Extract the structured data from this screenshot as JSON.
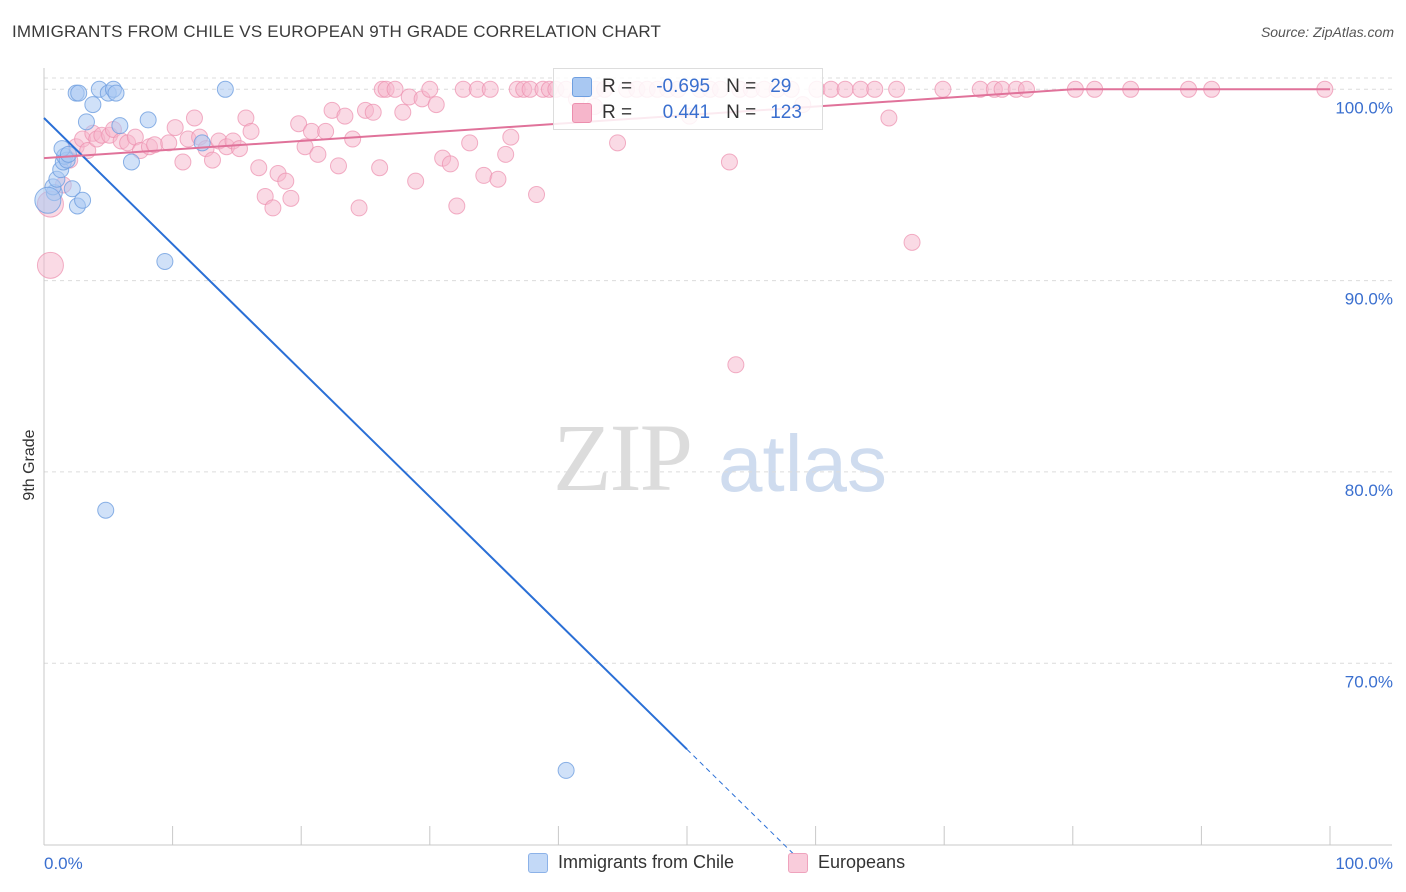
{
  "title": "IMMIGRANTS FROM CHILE VS EUROPEAN 9TH GRADE CORRELATION CHART",
  "source": "Source: ZipAtlas.com",
  "watermark": {
    "zip": "ZIP",
    "atlas": "atlas"
  },
  "legend_top": {
    "rows": [
      {
        "r_label": "R =",
        "r_value": "-0.695",
        "n_label": "N =",
        "n_value": "29"
      },
      {
        "r_label": "R =",
        "r_value": "0.441",
        "n_label": "N =",
        "n_value": "123"
      }
    ]
  },
  "legend_bottom": {
    "series_a": "Immigrants from Chile",
    "series_b": "Europeans"
  },
  "colors": {
    "chile_fill": "#a9c8f2",
    "chile_stroke": "#6f9fe0",
    "chile_line": "#2a6fd6",
    "euro_fill": "#f6b6cb",
    "euro_stroke": "#ec8fae",
    "euro_line": "#e0729a",
    "tick": "#3a6fcf",
    "grid": "#dcdcdc"
  },
  "chart_data": {
    "type": "scatter",
    "title": "IMMIGRANTS FROM CHILE VS EUROPEAN 9TH GRADE CORRELATION CHART",
    "xlabel": "",
    "ylabel": "9th Grade",
    "xlim": [
      0,
      100
    ],
    "ylim": [
      60.5,
      100.8
    ],
    "x_tick_labels": [
      "0.0%",
      "100.0%"
    ],
    "y_ticks": [
      {
        "value": 100,
        "label": "100.0%"
      },
      {
        "value": 90,
        "label": "90.0%"
      },
      {
        "value": 80,
        "label": "80.0%"
      },
      {
        "value": 70,
        "label": "70.0%"
      }
    ],
    "grid": true,
    "series": [
      {
        "name": "Immigrants from Chile",
        "r": -0.695,
        "n": 29,
        "trend": {
          "x0": 0,
          "y0": 98.5,
          "x1": 50,
          "y1": 65.5,
          "dash_to_x": 58.3
        },
        "points": [
          [
            0.8,
            94.6
          ],
          [
            0.7,
            94.9
          ],
          [
            1.0,
            95.3
          ],
          [
            1.3,
            95.8
          ],
          [
            1.5,
            96.2
          ],
          [
            1.6,
            96.5
          ],
          [
            1.8,
            96.3
          ],
          [
            1.4,
            96.9
          ],
          [
            1.9,
            96.6
          ],
          [
            2.2,
            94.8
          ],
          [
            2.6,
            93.9
          ],
          [
            3.0,
            94.2
          ],
          [
            2.5,
            99.8
          ],
          [
            2.7,
            99.8
          ],
          [
            3.3,
            98.3
          ],
          [
            3.8,
            99.2
          ],
          [
            4.3,
            100.0
          ],
          [
            5.0,
            99.8
          ],
          [
            5.4,
            100.0
          ],
          [
            5.6,
            99.8
          ],
          [
            5.9,
            98.1
          ],
          [
            6.8,
            96.2
          ],
          [
            8.1,
            98.4
          ],
          [
            12.3,
            97.2
          ],
          [
            14.1,
            100.0
          ],
          [
            9.4,
            91.0
          ],
          [
            4.8,
            78.0
          ],
          [
            40.6,
            64.4
          ],
          [
            0.3,
            94.2
          ]
        ]
      },
      {
        "name": "Europeans",
        "r": 0.441,
        "n": 123,
        "trend": {
          "x0": 0,
          "y0": 96.4,
          "x1": 80,
          "y1": 100.0,
          "x_end": 100
        },
        "points": [
          [
            0.5,
            94.0
          ],
          [
            0.5,
            90.8
          ],
          [
            1.5,
            95.0
          ],
          [
            2.0,
            96.3
          ],
          [
            2.5,
            97.0
          ],
          [
            3.0,
            97.4
          ],
          [
            3.4,
            96.8
          ],
          [
            3.8,
            97.7
          ],
          [
            4.1,
            97.4
          ],
          [
            4.5,
            97.6
          ],
          [
            5.1,
            97.6
          ],
          [
            5.4,
            97.9
          ],
          [
            6.0,
            97.3
          ],
          [
            6.5,
            97.2
          ],
          [
            7.1,
            97.5
          ],
          [
            7.5,
            96.8
          ],
          [
            8.2,
            97.0
          ],
          [
            8.6,
            97.1
          ],
          [
            9.7,
            97.2
          ],
          [
            10.2,
            98.0
          ],
          [
            10.8,
            96.2
          ],
          [
            11.2,
            97.4
          ],
          [
            11.7,
            98.5
          ],
          [
            12.1,
            97.5
          ],
          [
            12.6,
            96.9
          ],
          [
            13.1,
            96.3
          ],
          [
            13.6,
            97.3
          ],
          [
            14.2,
            97.0
          ],
          [
            14.7,
            97.3
          ],
          [
            15.2,
            96.9
          ],
          [
            15.7,
            98.5
          ],
          [
            16.1,
            97.8
          ],
          [
            16.7,
            95.9
          ],
          [
            17.2,
            94.4
          ],
          [
            17.8,
            93.8
          ],
          [
            18.2,
            95.6
          ],
          [
            18.8,
            95.2
          ],
          [
            19.2,
            94.3
          ],
          [
            19.8,
            98.2
          ],
          [
            20.3,
            97.0
          ],
          [
            20.8,
            97.8
          ],
          [
            21.3,
            96.6
          ],
          [
            21.9,
            97.8
          ],
          [
            22.4,
            98.9
          ],
          [
            22.9,
            96.0
          ],
          [
            23.4,
            98.6
          ],
          [
            24.0,
            97.4
          ],
          [
            24.5,
            93.8
          ],
          [
            25.0,
            98.9
          ],
          [
            25.6,
            98.8
          ],
          [
            26.1,
            95.9
          ],
          [
            26.3,
            100.0
          ],
          [
            26.6,
            100.0
          ],
          [
            27.3,
            100.0
          ],
          [
            27.9,
            98.8
          ],
          [
            28.4,
            99.6
          ],
          [
            28.9,
            95.2
          ],
          [
            29.4,
            99.5
          ],
          [
            30.0,
            100.0
          ],
          [
            30.5,
            99.2
          ],
          [
            31.0,
            96.4
          ],
          [
            31.6,
            96.1
          ],
          [
            32.1,
            93.9
          ],
          [
            32.6,
            100.0
          ],
          [
            33.1,
            97.2
          ],
          [
            33.7,
            100.0
          ],
          [
            34.2,
            95.5
          ],
          [
            34.7,
            100.0
          ],
          [
            35.3,
            95.3
          ],
          [
            35.9,
            96.6
          ],
          [
            36.3,
            97.5
          ],
          [
            36.8,
            100.0
          ],
          [
            37.3,
            100.0
          ],
          [
            37.8,
            100.0
          ],
          [
            38.3,
            94.5
          ],
          [
            38.8,
            100.0
          ],
          [
            39.3,
            100.0
          ],
          [
            39.8,
            100.0
          ],
          [
            40.6,
            100.0
          ],
          [
            41.4,
            99.5
          ],
          [
            42.1,
            100.0
          ],
          [
            42.9,
            100.0
          ],
          [
            43.6,
            100.0
          ],
          [
            44.6,
            97.2
          ],
          [
            45.3,
            100.0
          ],
          [
            46.1,
            100.0
          ],
          [
            46.9,
            100.0
          ],
          [
            47.7,
            100.0
          ],
          [
            48.5,
            100.0
          ],
          [
            49.3,
            100.0
          ],
          [
            50.2,
            98.6
          ],
          [
            51.0,
            100.0
          ],
          [
            51.8,
            100.0
          ],
          [
            52.6,
            100.0
          ],
          [
            53.3,
            96.2
          ],
          [
            54.1,
            100.0
          ],
          [
            55.0,
            100.0
          ],
          [
            56.0,
            100.0
          ],
          [
            57.0,
            100.0
          ],
          [
            58.1,
            100.0
          ],
          [
            59.0,
            99.2
          ],
          [
            60.1,
            100.0
          ],
          [
            61.2,
            100.0
          ],
          [
            62.3,
            100.0
          ],
          [
            63.5,
            100.0
          ],
          [
            64.6,
            100.0
          ],
          [
            65.7,
            98.5
          ],
          [
            66.3,
            100.0
          ],
          [
            67.5,
            92.0
          ],
          [
            69.9,
            100.0
          ],
          [
            72.8,
            100.0
          ],
          [
            73.9,
            100.0
          ],
          [
            74.5,
            100.0
          ],
          [
            75.6,
            100.0
          ],
          [
            76.4,
            100.0
          ],
          [
            80.2,
            100.0
          ],
          [
            81.7,
            100.0
          ],
          [
            84.5,
            100.0
          ],
          [
            89.0,
            100.0
          ],
          [
            90.8,
            100.0
          ],
          [
            99.6,
            100.0
          ],
          [
            42.8,
            99.1
          ],
          [
            53.8,
            85.6
          ]
        ]
      }
    ]
  }
}
